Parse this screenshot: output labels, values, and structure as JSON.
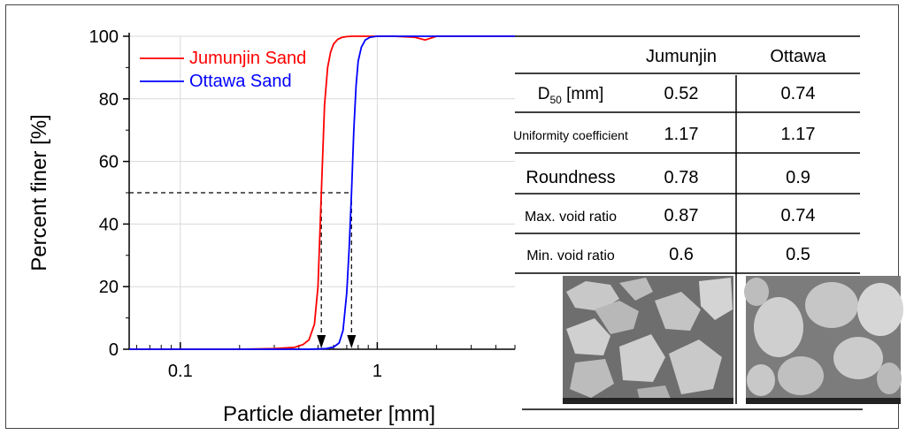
{
  "chart_data": {
    "type": "line",
    "x_scale": "log",
    "xlim": [
      0.055,
      5
    ],
    "ylim": [
      0,
      100
    ],
    "x_ticks": [
      0.1,
      1
    ],
    "x_tick_labels": [
      "0.1",
      "1"
    ],
    "y_ticks": [
      0,
      20,
      40,
      60,
      80,
      100
    ],
    "y_tick_labels": [
      "0",
      "20",
      "40",
      "60",
      "80",
      "100"
    ],
    "xlabel": "Particle diameter [mm]",
    "ylabel": "Percent finer [%]",
    "grid": true,
    "legend_position": "top-left",
    "series": [
      {
        "name": "Jumunjin Sand",
        "color": "#ff0000",
        "x": [
          0.055,
          0.2,
          0.3,
          0.38,
          0.42,
          0.45,
          0.48,
          0.5,
          0.52,
          0.54,
          0.56,
          0.58,
          0.6,
          0.63,
          0.66,
          0.7,
          0.75,
          0.82,
          0.95,
          1.2,
          1.55,
          1.75,
          2.0,
          3.0,
          5.0
        ],
        "y": [
          0,
          0,
          0.2,
          0.6,
          1.5,
          3,
          8,
          20,
          50,
          78,
          90,
          95,
          97.5,
          99,
          99.6,
          99.9,
          100,
          100,
          100,
          100,
          99.7,
          98.8,
          100,
          100,
          100
        ]
      },
      {
        "name": "Ottawa Sand",
        "color": "#0000ff",
        "x": [
          0.055,
          0.3,
          0.45,
          0.55,
          0.6,
          0.64,
          0.67,
          0.7,
          0.72,
          0.74,
          0.76,
          0.78,
          0.8,
          0.83,
          0.87,
          0.92,
          1.0,
          1.2,
          2.0,
          5.0
        ],
        "y": [
          0,
          0,
          0,
          0.2,
          0.7,
          2,
          6,
          18,
          32,
          50,
          70,
          84,
          92,
          96.5,
          98.8,
          99.7,
          100,
          100,
          100,
          100
        ]
      }
    ],
    "d50_markers": [
      {
        "series": "Jumunjin Sand",
        "x": 0.52,
        "y": 50
      },
      {
        "series": "Ottawa Sand",
        "x": 0.74,
        "y": 50
      }
    ]
  },
  "legend": {
    "items": [
      {
        "label": "Jumunjin Sand",
        "color": "#ff0000"
      },
      {
        "label": "Ottawa Sand",
        "color": "#0000ff"
      }
    ]
  },
  "table": {
    "headers": [
      "Jumunjin",
      "Ottawa"
    ],
    "rows": [
      {
        "label_main": "D",
        "label_sub": "50",
        "label_unit": " [mm]",
        "jumunjin": "0.52",
        "ottawa": "0.74"
      },
      {
        "label_main": "Uniformity coefficient",
        "label_sub": "",
        "label_unit": "",
        "jumunjin": "1.17",
        "ottawa": "1.17"
      },
      {
        "label_main": "Roundness",
        "label_sub": "",
        "label_unit": "",
        "jumunjin": "0.78",
        "ottawa": "0.9"
      },
      {
        "label_main": "Max. void ratio",
        "label_sub": "",
        "label_unit": "",
        "jumunjin": "0.87",
        "ottawa": "0.74"
      },
      {
        "label_main": "Min. void ratio",
        "label_sub": "",
        "label_unit": "",
        "jumunjin": "0.6",
        "ottawa": "0.5"
      }
    ]
  },
  "photos": [
    {
      "icon": "angular-grains-micrograph",
      "bg": "#7a7a7a"
    },
    {
      "icon": "rounded-grains-micrograph",
      "bg": "#8a8a8a"
    }
  ]
}
